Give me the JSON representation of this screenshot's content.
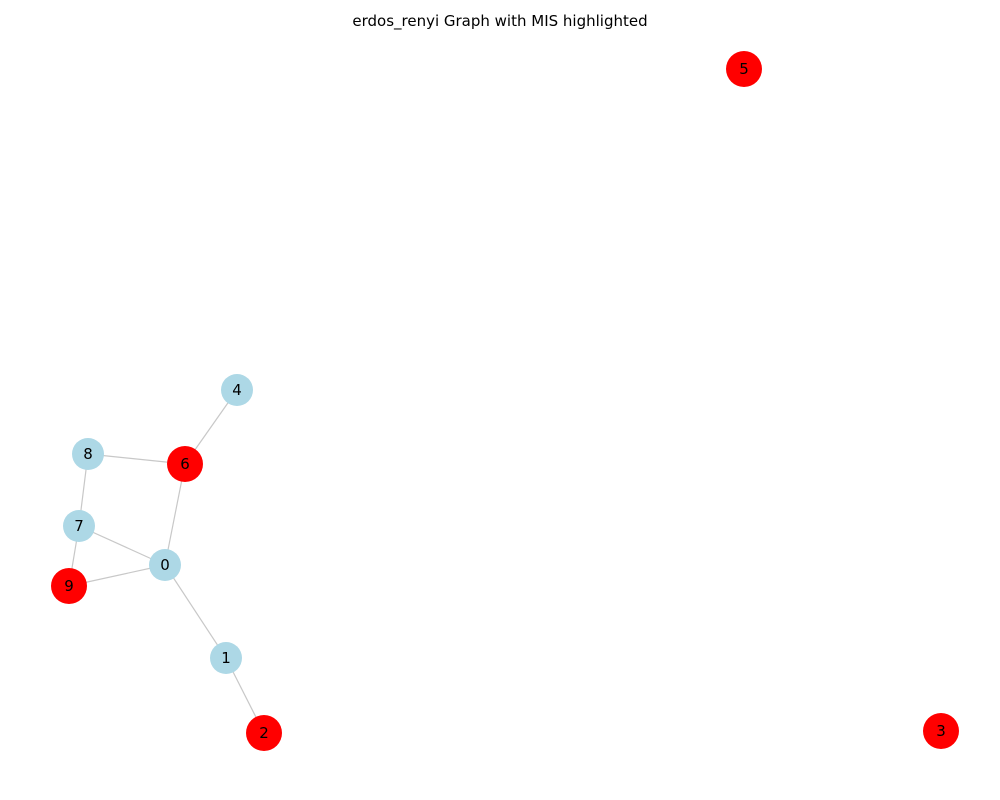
{
  "title": "erdos_renyi Graph with MIS highlighted",
  "colors": {
    "mis": "#ff0000",
    "other": "#add8e6",
    "edge": "#c8c8c8"
  },
  "nodes": [
    {
      "id": "0",
      "mis": false
    },
    {
      "id": "1",
      "mis": false
    },
    {
      "id": "2",
      "mis": true
    },
    {
      "id": "3",
      "mis": true
    },
    {
      "id": "4",
      "mis": false
    },
    {
      "id": "5",
      "mis": true
    },
    {
      "id": "6",
      "mis": true
    },
    {
      "id": "7",
      "mis": false
    },
    {
      "id": "8",
      "mis": false
    },
    {
      "id": "9",
      "mis": true
    }
  ],
  "edges": [
    [
      "4",
      "6"
    ],
    [
      "8",
      "6"
    ],
    [
      "6",
      "0"
    ],
    [
      "8",
      "7"
    ],
    [
      "7",
      "0"
    ],
    [
      "7",
      "9"
    ],
    [
      "9",
      "0"
    ],
    [
      "0",
      "1"
    ],
    [
      "1",
      "2"
    ]
  ]
}
